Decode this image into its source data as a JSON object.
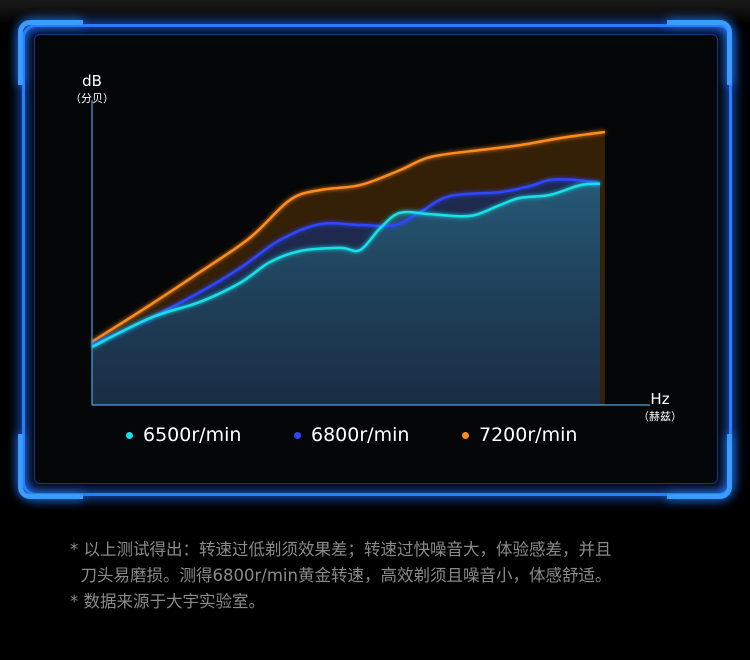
{
  "chart_data": {
    "type": "line",
    "title": "",
    "xlabel": "Hz",
    "xlabel_sub": "（赫兹）",
    "ylabel": "dB",
    "ylabel_sub": "（分贝）",
    "xlim": [
      0,
      100
    ],
    "ylim": [
      0,
      100
    ],
    "grid": false,
    "tick_labels": false,
    "legend_placement": "bottom",
    "series": [
      {
        "name": "6500r/min",
        "color": "#19e0e8",
        "x": [
          0,
          10.6,
          19.7,
          27,
          32.5,
          38,
          45.3,
          48.9,
          52.6,
          56.2,
          61.7,
          69,
          74.5,
          78.1,
          83.6,
          89.1,
          92.7
        ],
        "y": [
          19,
          28.5,
          33.8,
          40,
          46.9,
          50.5,
          51.5,
          50.8,
          58,
          63,
          62.6,
          62,
          65.6,
          67.9,
          68.9,
          72.1,
          72.5
        ]
      },
      {
        "name": "6800r/min",
        "color": "#2e46ff",
        "x": [
          0,
          10.6,
          19.7,
          27,
          34.3,
          41.6,
          48.9,
          55.3,
          59.9,
          65.3,
          74.5,
          79.9,
          83.6,
          88.1,
          92.7
        ],
        "y": [
          19.7,
          28.5,
          37,
          44.9,
          54.1,
          59.3,
          59,
          59,
          63.3,
          68.5,
          69.8,
          71.8,
          73.8,
          73.8,
          72.8
        ]
      },
      {
        "name": "7200r/min",
        "color": "#ff8c1a",
        "x": [
          0,
          10.6,
          19.7,
          28.8,
          36.1,
          41.6,
          48.9,
          56.2,
          61.7,
          70.8,
          78.1,
          85.4,
          93.6
        ],
        "y": [
          20.7,
          32.8,
          43.6,
          54.8,
          67.2,
          70.5,
          72.1,
          77,
          81.3,
          83.6,
          85.2,
          87.5,
          89.5
        ]
      }
    ]
  },
  "notes": [
    "* 以上测试得出：转速过低剃须效果差；转速过快噪音大，体验感差，并且",
    "  刀头易磨损。测得6800r/min黄金转速，高效剃须且噪音小，体感舒适。",
    "* 数据来源于大宇实验室。"
  ]
}
